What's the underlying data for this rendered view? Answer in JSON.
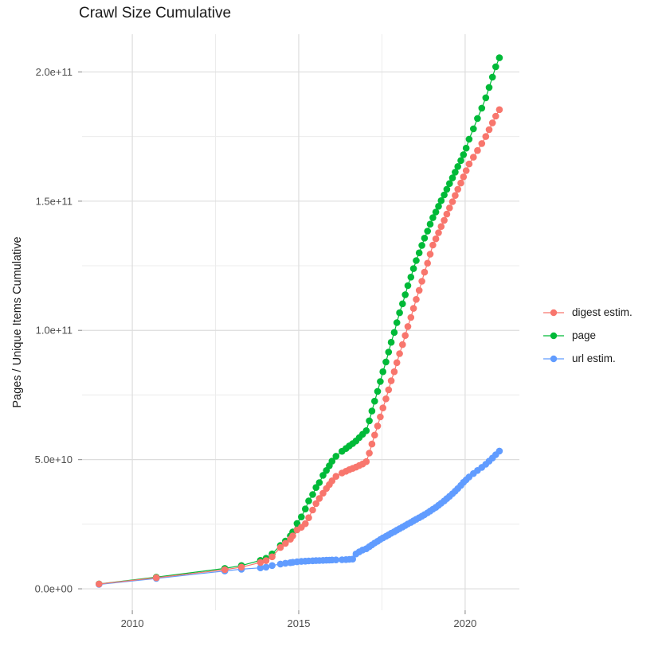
{
  "title": "Crawl Size Cumulative",
  "y_axis": {
    "title": "Pages / Unique Items Cumulative",
    "tick_labels": [
      "0.0e+00",
      "5.0e+10",
      "1.0e+11",
      "1.5e+11",
      "2.0e+11"
    ],
    "tick_values_e9": [
      0,
      50,
      100,
      150,
      200
    ]
  },
  "x_axis": {
    "title": "",
    "tick_labels": [
      "2010",
      "2015",
      "2020"
    ],
    "tick_values": [
      2010,
      2015,
      2020
    ]
  },
  "legend": {
    "items": [
      {
        "label": "digest estim.",
        "color": "#F8766D"
      },
      {
        "label": "page",
        "color": "#00BA38"
      },
      {
        "label": "url estim.",
        "color": "#619CFF"
      }
    ]
  },
  "colors": {
    "grid_major": "#DDDDDD",
    "grid_minor": "#ECECEC",
    "tick": "#999999",
    "axis_text": "#4D4D4D",
    "title_text": "#1A1A1A",
    "background": "#FFFFFF"
  },
  "chart_data": {
    "type": "line",
    "markers": true,
    "title": "Crawl Size Cumulative",
    "xlabel": "",
    "ylabel": "Pages / Unique Items Cumulative",
    "values_scale": 1000000000.0,
    "xlim": [
      2008.49,
      2021.63
    ],
    "ylim_e9": [
      -8.3,
      214.6
    ],
    "x_major": [
      2010,
      2015,
      2020
    ],
    "x_minor": [
      2012.5,
      2017.5
    ],
    "y_major_e9": [
      0,
      50,
      100,
      150,
      200
    ],
    "y_minor_e9": [
      25,
      75,
      125,
      175
    ],
    "grid": true,
    "legend_position": "right-center",
    "draw_order": [
      "page",
      "url estim.",
      "digest estim."
    ],
    "x_years": [
      2009.0,
      2010.72,
      2012.78,
      2013.28,
      2013.85,
      2014.02,
      2014.2,
      2014.45,
      2014.6,
      2014.75,
      2014.82,
      2014.95,
      2015.08,
      2015.2,
      2015.3,
      2015.42,
      2015.52,
      2015.62,
      2015.73,
      2015.83,
      2015.92,
      2016.0,
      2016.12,
      2016.3,
      2016.42,
      2016.52,
      2016.62,
      2016.72,
      2016.82,
      2016.92,
      2017.03,
      2017.12,
      2017.2,
      2017.28,
      2017.37,
      2017.45,
      2017.53,
      2017.62,
      2017.7,
      2017.78,
      2017.87,
      2017.95,
      2018.03,
      2018.12,
      2018.2,
      2018.28,
      2018.37,
      2018.45,
      2018.53,
      2018.62,
      2018.7,
      2018.78,
      2018.87,
      2018.95,
      2019.03,
      2019.12,
      2019.2,
      2019.28,
      2019.37,
      2019.45,
      2019.53,
      2019.62,
      2019.7,
      2019.78,
      2019.87,
      2019.95,
      2020.03,
      2020.12,
      2020.25,
      2020.37,
      2020.5,
      2020.62,
      2020.72,
      2020.82,
      2020.92,
      2021.03
    ],
    "series": [
      {
        "name": "digest estim.",
        "color": "#F8766D",
        "values_e9": [
          1.85,
          4.3,
          7.4,
          8.4,
          10.2,
          10.9,
          12.4,
          16.0,
          17.6,
          19.2,
          20.5,
          22.8,
          23.8,
          25.2,
          27.5,
          30.5,
          33.0,
          35.0,
          37.0,
          38.8,
          40.3,
          41.8,
          43.5,
          44.8,
          45.5,
          46.1,
          46.6,
          47.1,
          47.7,
          48.3,
          49.2,
          52.5,
          56.0,
          59.5,
          63.0,
          66.5,
          70.0,
          73.5,
          77.0,
          80.5,
          84.0,
          87.5,
          91.0,
          94.5,
          98.0,
          101.5,
          105.0,
          108.5,
          112.0,
          115.5,
          119.0,
          122.5,
          126.0,
          129.5,
          133.0,
          135.4,
          137.8,
          140.2,
          142.6,
          145.0,
          147.4,
          149.8,
          152.2,
          154.6,
          157.0,
          159.4,
          161.8,
          164.4,
          167.0,
          169.6,
          172.3,
          175.0,
          177.7,
          180.3,
          182.9,
          185.4
        ]
      },
      {
        "name": "page",
        "color": "#00BA38",
        "values_e9": [
          1.9,
          4.5,
          7.9,
          9.0,
          11.0,
          11.8,
          13.5,
          16.8,
          18.5,
          20.5,
          22.0,
          25.3,
          27.8,
          30.9,
          34.0,
          36.5,
          39.2,
          41.1,
          43.9,
          45.8,
          47.6,
          49.4,
          51.3,
          53.2,
          54.3,
          55.3,
          56.2,
          57.2,
          58.5,
          59.8,
          61.2,
          65.0,
          68.8,
          72.6,
          76.4,
          80.2,
          84.0,
          87.8,
          91.6,
          95.4,
          99.2,
          103.0,
          106.8,
          110.3,
          113.8,
          117.3,
          120.6,
          123.9,
          127.0,
          130.0,
          132.9,
          135.7,
          138.4,
          141.1,
          143.6,
          145.8,
          148.0,
          150.2,
          152.4,
          154.6,
          156.8,
          159.0,
          161.2,
          163.4,
          165.7,
          168.0,
          170.5,
          174.0,
          178.0,
          182.0,
          186.0,
          190.0,
          194.0,
          198.0,
          202.0,
          205.5
        ]
      },
      {
        "name": "url estim.",
        "color": "#619CFF",
        "values_e9": [
          1.7,
          4.0,
          6.9,
          7.6,
          8.1,
          8.4,
          9.0,
          9.6,
          9.9,
          10.1,
          10.25,
          10.45,
          10.6,
          10.7,
          10.8,
          10.85,
          10.9,
          10.95,
          11.0,
          11.05,
          11.1,
          11.15,
          11.2,
          11.25,
          11.3,
          11.4,
          11.5,
          13.5,
          14.3,
          15.0,
          15.5,
          16.3,
          17.0,
          17.7,
          18.4,
          19.1,
          19.7,
          20.3,
          20.9,
          21.5,
          22.1,
          22.7,
          23.3,
          23.9,
          24.5,
          25.1,
          25.7,
          26.3,
          26.9,
          27.5,
          28.1,
          28.7,
          29.4,
          30.1,
          30.8,
          31.5,
          32.3,
          33.1,
          34.0,
          34.9,
          35.8,
          36.8,
          37.8,
          38.8,
          40.0,
          41.2,
          42.2,
          43.3,
          44.6,
          45.8,
          47.0,
          48.2,
          49.4,
          50.6,
          51.9,
          53.3
        ]
      }
    ]
  }
}
